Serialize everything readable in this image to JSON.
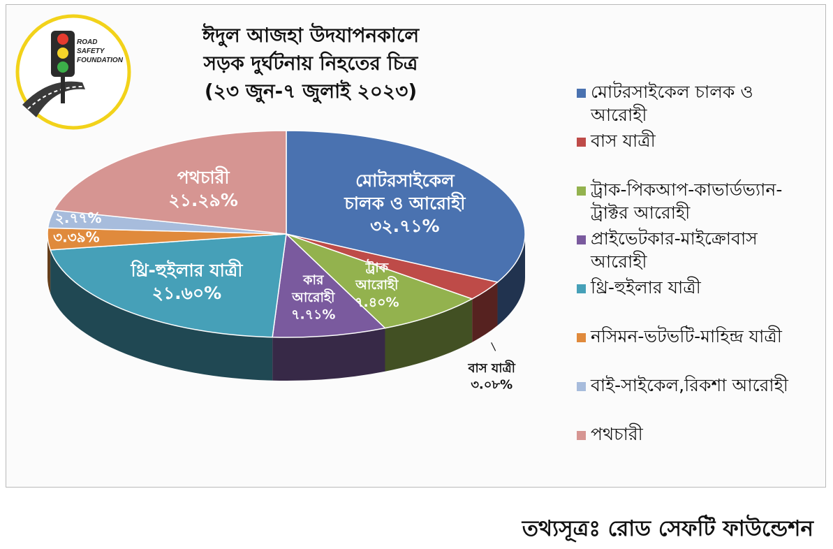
{
  "chart_data": {
    "type": "pie",
    "title_lines": [
      "ঈদুল আজহা উদযাপনকালে",
      "সড়ক দুর্ঘটনায় নিহতের চিত্র",
      "(২৩ জুন-৭ জুলাই ২০২৩)"
    ],
    "slices": [
      {
        "name": "মোটরসাইকেল চালক ও আরোহী",
        "value": 32.71,
        "color": "#4a72b0",
        "label_lines": [
          "মোটরসাইকেল",
          "চালক ও আরোহী",
          "৩২.৭১%"
        ]
      },
      {
        "name": "বাস যাত্রী",
        "value": 3.08,
        "color": "#be4b48",
        "label_lines": [
          "বাস যাত্রী",
          "৩.০৮%"
        ]
      },
      {
        "name": "ট্রাক-পিকআপ-কাভার্ডভ্যান-ট্রাক্টর আরোহী",
        "value": 7.4,
        "color": "#93b24e",
        "label_lines": [
          "ট্রাক",
          "আরোহী",
          "৭.৪০%"
        ]
      },
      {
        "name": "প্রাইভেটকার-মাইক্রোবাস আরোহী",
        "value": 7.71,
        "color": "#7a5a9e",
        "label_lines": [
          "কার",
          "আরোহী",
          "৭.৭১%"
        ]
      },
      {
        "name": "থ্রি-হুইলার যাত্রী",
        "value": 21.6,
        "color": "#46a0b8",
        "label_lines": [
          "থ্রি-হুইলার যাত্রী",
          "২১.৬০%"
        ]
      },
      {
        "name": "নসিমন-ভটভটি-মাহিন্দ্র যাত্রী",
        "value": 3.39,
        "color": "#e08a3c",
        "label_lines": [
          "৩.৩৯%"
        ]
      },
      {
        "name": "বাই-সাইকেল,রিকশা আরোহী",
        "value": 2.77,
        "color": "#a7bcdc",
        "label_lines": [
          "২.৭৭%"
        ]
      },
      {
        "name": "পথচারী",
        "value": 21.29,
        "color": "#d69592",
        "label_lines": [
          "পথচারী",
          "২১.২৯%"
        ]
      }
    ],
    "legend": {
      "placement": "right",
      "items": [
        {
          "lines": [
            "মোটরসাইকেল চালক ও",
            "আরোহী"
          ],
          "color": "#4a72b0"
        },
        {
          "lines": [
            "বাস যাত্রী"
          ],
          "color": "#be4b48"
        },
        {
          "lines": [
            "ট্রাক-পিকআপ-কাভার্ডভ্যান-",
            "ট্রাক্টর আরোহী"
          ],
          "color": "#93b24e"
        },
        {
          "lines": [
            "প্রাইভেটকার-মাইক্রোবাস",
            "আরোহী"
          ],
          "color": "#7a5a9e"
        },
        {
          "lines": [
            "থ্রি-হুইলার যাত্রী"
          ],
          "color": "#46a0b8"
        },
        {
          "lines": [
            "নসিমন-ভটভটি-মাহিন্দ্র যাত্রী"
          ],
          "color": "#e08a3c"
        },
        {
          "lines": [
            "বাই-সাইকেল,রিকশা আরোহী"
          ],
          "color": "#a7bcdc"
        },
        {
          "lines": [
            "পথচারী"
          ],
          "color": "#d69592"
        }
      ]
    }
  },
  "logo": {
    "text_lines": [
      "ROAD",
      "SAFETY",
      "FOUNDATION"
    ],
    "ring_color": "#f2d21a"
  },
  "source": "তথ্যসূত্রঃ রোড সেফটি ফাউন্ডেশন"
}
